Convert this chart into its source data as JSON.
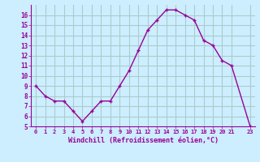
{
  "x": [
    0,
    1,
    2,
    3,
    4,
    5,
    6,
    7,
    8,
    9,
    10,
    11,
    12,
    13,
    14,
    15,
    16,
    17,
    18,
    19,
    20,
    21,
    23
  ],
  "y": [
    9.0,
    8.0,
    7.5,
    7.5,
    6.5,
    5.5,
    6.5,
    7.5,
    7.5,
    9.0,
    10.5,
    12.5,
    14.5,
    15.5,
    16.5,
    16.5,
    16.0,
    15.5,
    13.5,
    13.0,
    11.5,
    11.0,
    5.0
  ],
  "line_color": "#990099",
  "marker": "+",
  "marker_color": "#990099",
  "bg_color": "#cceeff",
  "grid_color": "#aacccc",
  "xlabel": "Windchill (Refroidissement éolien,°C)",
  "xlabel_color": "#990099",
  "tick_color": "#990099",
  "ylim": [
    5,
    17
  ],
  "xlim": [
    -0.5,
    23.5
  ],
  "yticks": [
    5,
    6,
    7,
    8,
    9,
    10,
    11,
    12,
    13,
    14,
    15,
    16
  ],
  "xticks": [
    0,
    1,
    2,
    3,
    4,
    5,
    6,
    7,
    8,
    9,
    10,
    11,
    12,
    13,
    14,
    15,
    16,
    17,
    18,
    19,
    20,
    21,
    23
  ],
  "xtick_labels": [
    "0",
    "1",
    "2",
    "3",
    "4",
    "5",
    "6",
    "7",
    "8",
    "9",
    "10",
    "11",
    "12",
    "13",
    "14",
    "15",
    "16",
    "17",
    "18",
    "19",
    "20",
    "21",
    "23"
  ],
  "linewidth": 1.0,
  "markersize": 3.5
}
